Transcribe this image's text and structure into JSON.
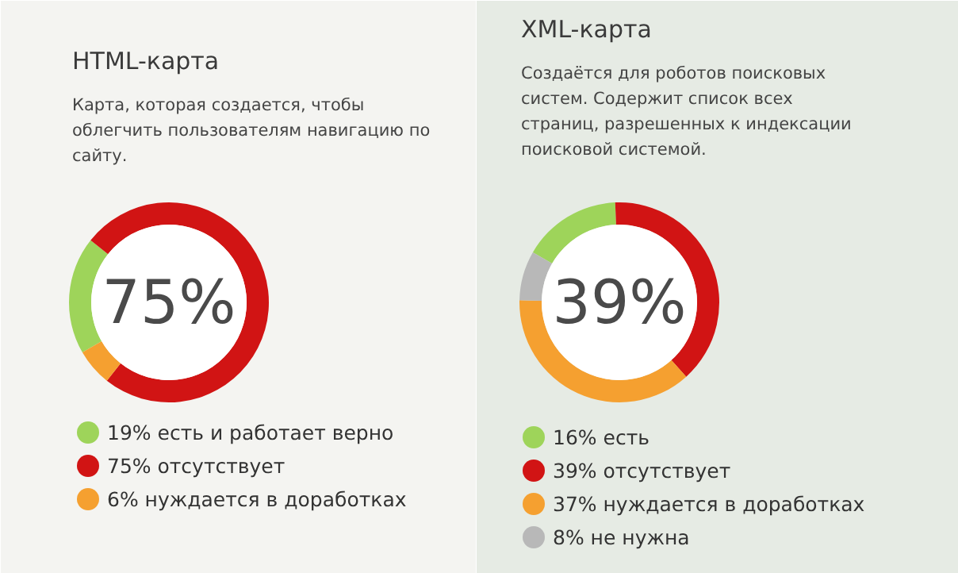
{
  "chart_data": [
    {
      "type": "donut",
      "title": "HTML-карта",
      "subtitle": "Карта, которая создается, чтобы облегчить пользователям навигацию по сайту.",
      "categories": [
        "есть и работает верно",
        "отсутствует",
        "нуждается в доработках"
      ],
      "values": [
        19,
        75,
        6
      ],
      "colors": [
        "#9ed45a",
        "#d11414",
        "#f5a030"
      ],
      "value_labels": [
        "19%",
        "75%",
        "6%"
      ],
      "annotations": [
        "75%"
      ],
      "legend": "bottom"
    },
    {
      "type": "donut",
      "title": "XML-карта",
      "subtitle": "Создаётся для роботов поисковых систем. Содержит список всех страниц, разрешенных к индексации поисковой системой.",
      "categories": [
        "есть",
        "отсутствует",
        "нуждается в доработках",
        "не нужна"
      ],
      "values": [
        16,
        39,
        37,
        8
      ],
      "colors": [
        "#9ed45a",
        "#d11414",
        "#f5a030",
        "#b8b8b8"
      ],
      "value_labels": [
        "16%",
        "39%",
        "37%",
        "8%"
      ],
      "annotations": [
        "39%"
      ],
      "legend": "bottom"
    }
  ]
}
